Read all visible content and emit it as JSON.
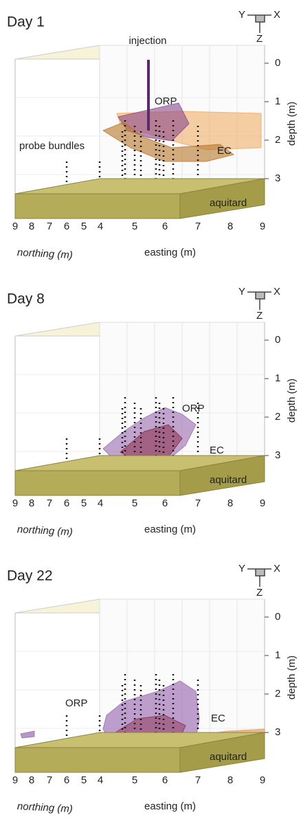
{
  "panels": [
    {
      "title": "Day 1",
      "orientation": {
        "y": "Y",
        "x": "X",
        "z": "Z"
      },
      "annotations": [
        "injection",
        "ORP",
        "EC",
        "probe bundles",
        "aquitard"
      ],
      "depth_ticks": [
        0,
        1,
        2,
        3
      ],
      "depth_label": "depth (m)",
      "northing_ticks": [
        9,
        8,
        7,
        6,
        5,
        4
      ],
      "northing_label": "northing (m)",
      "easting_ticks": [
        5,
        6,
        7,
        8,
        9
      ],
      "easting_label": "easting (m)"
    },
    {
      "title": "Day 8",
      "orientation": {
        "y": "Y",
        "x": "X",
        "z": "Z"
      },
      "annotations": [
        "ORP",
        "EC",
        "aquitard"
      ],
      "depth_ticks": [
        0,
        1,
        2,
        3
      ],
      "depth_label": "depth (m)",
      "northing_ticks": [
        9,
        8,
        7,
        6,
        5,
        4
      ],
      "northing_label": "northing (m)",
      "easting_ticks": [
        5,
        6,
        7,
        8,
        9
      ],
      "easting_label": "easting (m)"
    },
    {
      "title": "Day 22",
      "orientation": {
        "y": "Y",
        "x": "X",
        "z": "Z"
      },
      "annotations": [
        "ORP",
        "EC",
        "aquitard"
      ],
      "depth_ticks": [
        0,
        1,
        2,
        3
      ],
      "depth_label": "depth (m)",
      "northing_ticks": [
        9,
        8,
        7,
        6,
        5,
        4
      ],
      "northing_label": "northing (m)",
      "easting_ticks": [
        5,
        6,
        7,
        8,
        9
      ],
      "easting_label": "easting (m)"
    }
  ]
}
